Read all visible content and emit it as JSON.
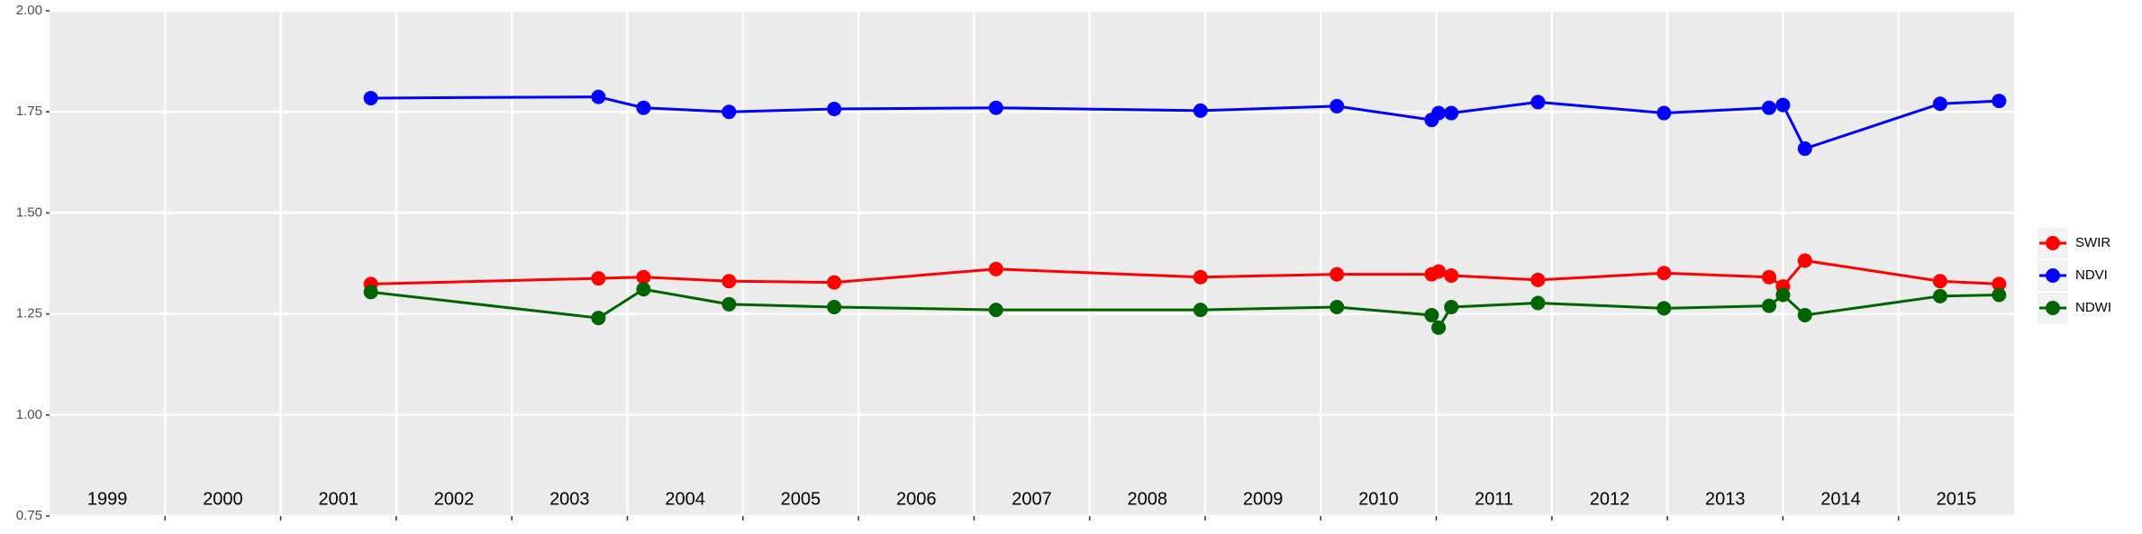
{
  "chart_data": {
    "type": "line",
    "x": [
      2001.78,
      2003.75,
      2004.14,
      2004.88,
      2005.79,
      2007.19,
      2008.96,
      2010.14,
      2010.96,
      2011.02,
      2011.13,
      2011.88,
      2012.97,
      2013.88,
      2014.0,
      2014.19,
      2015.36,
      2015.87
    ],
    "series": [
      {
        "name": "SWIR",
        "color": "#ff0000",
        "values": [
          1.324,
          1.338,
          1.341,
          1.331,
          1.328,
          1.361,
          1.341,
          1.348,
          1.348,
          1.355,
          1.345,
          1.334,
          1.351,
          1.341,
          1.318,
          1.382,
          1.331,
          1.324
        ]
      },
      {
        "name": "NDVI",
        "color": "#0000ff",
        "values": [
          1.784,
          1.787,
          1.76,
          1.75,
          1.757,
          1.76,
          1.753,
          1.764,
          1.73,
          1.747,
          1.747,
          1.774,
          1.747,
          1.76,
          1.767,
          1.659,
          1.77,
          1.777
        ]
      },
      {
        "name": "NDWI",
        "color": "#006400",
        "values": [
          1.304,
          1.24,
          1.311,
          1.274,
          1.267,
          1.26,
          1.26,
          1.267,
          1.247,
          1.216,
          1.267,
          1.277,
          1.264,
          1.27,
          1.297,
          1.247,
          1.294,
          1.297
        ]
      }
    ],
    "xlim": [
      1999,
      2016
    ],
    "xticks": [
      2000,
      2001,
      2002,
      2003,
      2004,
      2005,
      2006,
      2007,
      2008,
      2009,
      2010,
      2011,
      2012,
      2013,
      2014,
      2015
    ],
    "ylim": [
      0.75,
      2.0
    ],
    "yticks": [
      {
        "value": 0.75,
        "label": "0.75"
      },
      {
        "value": 1,
        "label": "1.00"
      },
      {
        "value": 1.25,
        "label": "1.25"
      },
      {
        "value": 1.5,
        "label": "1.50"
      },
      {
        "value": 1.75,
        "label": "1.75"
      },
      {
        "value": 2,
        "label": "2.00"
      }
    ],
    "annotations": [
      {
        "text": "1999",
        "x": 1999.5,
        "y": 0.79
      },
      {
        "text": "2000",
        "x": 2000.5,
        "y": 0.79
      },
      {
        "text": "2001",
        "x": 2001.5,
        "y": 0.79
      },
      {
        "text": "2002",
        "x": 2002.5,
        "y": 0.79
      },
      {
        "text": "2003",
        "x": 2003.5,
        "y": 0.79
      },
      {
        "text": "2004",
        "x": 2004.5,
        "y": 0.79
      },
      {
        "text": "2005",
        "x": 2005.5,
        "y": 0.79
      },
      {
        "text": "2006",
        "x": 2006.5,
        "y": 0.79
      },
      {
        "text": "2007",
        "x": 2007.5,
        "y": 0.79
      },
      {
        "text": "2008",
        "x": 2008.5,
        "y": 0.79
      },
      {
        "text": "2009",
        "x": 2009.5,
        "y": 0.79
      },
      {
        "text": "2010",
        "x": 2010.5,
        "y": 0.79
      },
      {
        "text": "2011",
        "x": 2011.5,
        "y": 0.79
      },
      {
        "text": "2012",
        "x": 2012.5,
        "y": 0.79
      },
      {
        "text": "2013",
        "x": 2013.5,
        "y": 0.79
      },
      {
        "text": "2014",
        "x": 2014.5,
        "y": 0.79
      },
      {
        "text": "2015",
        "x": 2015.5,
        "y": 0.79
      }
    ],
    "grid": true,
    "legend": "right"
  }
}
